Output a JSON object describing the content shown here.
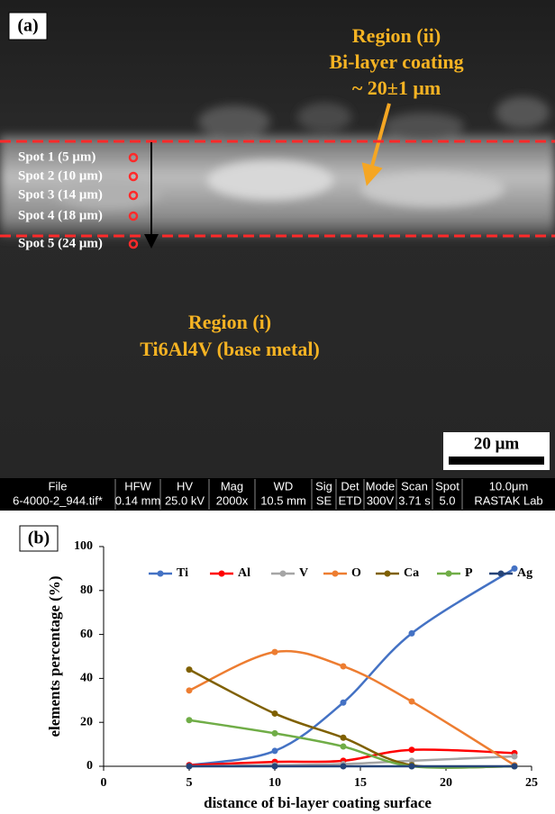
{
  "panel_a": {
    "label": "(a)",
    "region_ii": [
      "Region (ii)",
      "Bi-layer coating",
      "~ 20±1 μm"
    ],
    "spots": [
      "Spot 1 (5 μm)",
      "Spot 2 (10 μm)",
      "Spot 3 (14 μm)",
      "Spot 4 (18 μm)",
      "Spot 5 (24 μm)"
    ],
    "region_i": [
      "Region (i)",
      "Ti6Al4V (base metal)"
    ],
    "scale_bar": "20  μm",
    "info_bar": {
      "headers": [
        "File",
        "HFW",
        "HV",
        "Mag",
        "WD",
        "Sig",
        "Det",
        "Mode",
        "Scan",
        "Spot",
        "10.0μm"
      ],
      "values": [
        "6-4000-2_944.tif*",
        "0.14 mm",
        "25.0 kV",
        "2000x",
        "10.5 mm",
        "SE",
        "ETD",
        "300V",
        "3.71 s",
        "5.0",
        "RASTAK Lab"
      ]
    }
  },
  "panel_b_label": "(b)",
  "chart_data": {
    "type": "line",
    "x_label": "distance of bi-layer coating surface",
    "y_label": "elements percentage (%)",
    "x": [
      5,
      10,
      14,
      18,
      24
    ],
    "series": [
      {
        "name": "Ti",
        "color": "#4472c4",
        "values": [
          0.5,
          7,
          29,
          60.5,
          90
        ]
      },
      {
        "name": "Al",
        "color": "#ff0000",
        "values": [
          0.5,
          2,
          2.5,
          7.5,
          6
        ]
      },
      {
        "name": "V",
        "color": "#a5a5a5",
        "values": [
          0,
          0.5,
          1,
          2.5,
          4.5
        ]
      },
      {
        "name": "O",
        "color": "#ed7d31",
        "values": [
          34.5,
          52,
          45.5,
          29.5,
          0.5
        ]
      },
      {
        "name": "Ca",
        "color": "#7f6000",
        "values": [
          44,
          24,
          13,
          0.5,
          0
        ]
      },
      {
        "name": "P",
        "color": "#70ad47",
        "values": [
          21,
          15,
          9,
          0,
          0
        ]
      },
      {
        "name": "Ag",
        "color": "#264478",
        "values": [
          0,
          0,
          0,
          0,
          0
        ]
      }
    ],
    "xlim": [
      0,
      25
    ],
    "xticks": [
      0,
      5,
      10,
      15,
      20,
      25
    ],
    "ylim": [
      0,
      100
    ],
    "yticks": [
      0,
      20,
      40,
      60,
      80,
      100
    ],
    "grid": false,
    "legend": "top",
    "smooth": true
  }
}
